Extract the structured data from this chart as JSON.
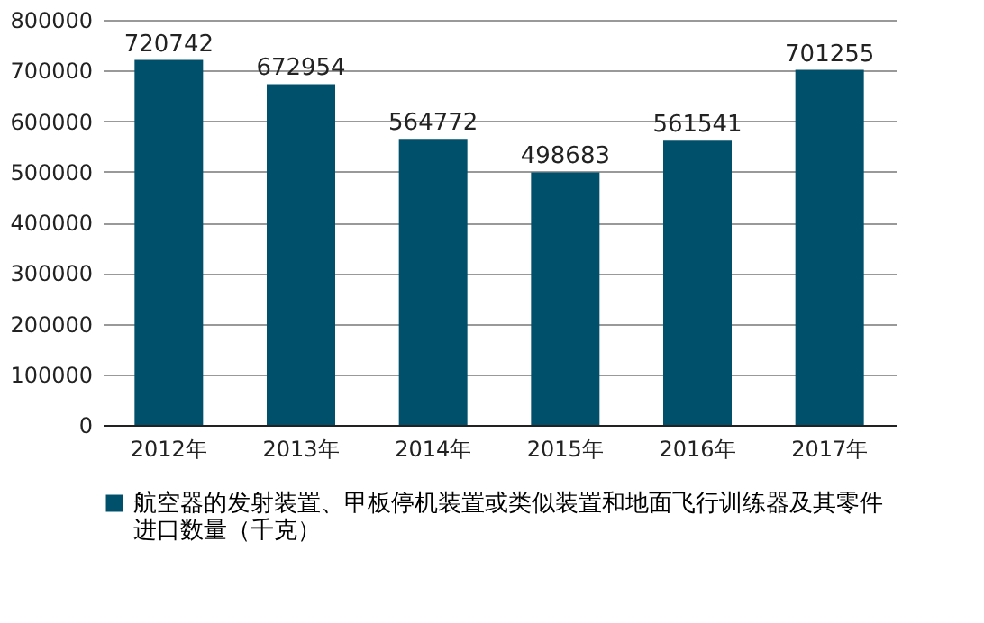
{
  "chart_data": {
    "type": "bar",
    "categories": [
      "2012年",
      "2013年",
      "2014年",
      "2015年",
      "2016年",
      "2017年"
    ],
    "series": [
      {
        "name": "航空器的发射装置、甲板停机装置或类似装置和地面飞行训练器及其零件进口数量（千克）",
        "color": "#004f6b",
        "values": [
          720742,
          672954,
          564772,
          498683,
          561541,
          701255
        ]
      }
    ],
    "ylim": [
      0,
      800000
    ],
    "yticks": [
      0,
      100000,
      200000,
      300000,
      400000,
      500000,
      600000,
      700000,
      800000
    ],
    "grid": "y",
    "data_labels": true,
    "legend": "bottom"
  }
}
